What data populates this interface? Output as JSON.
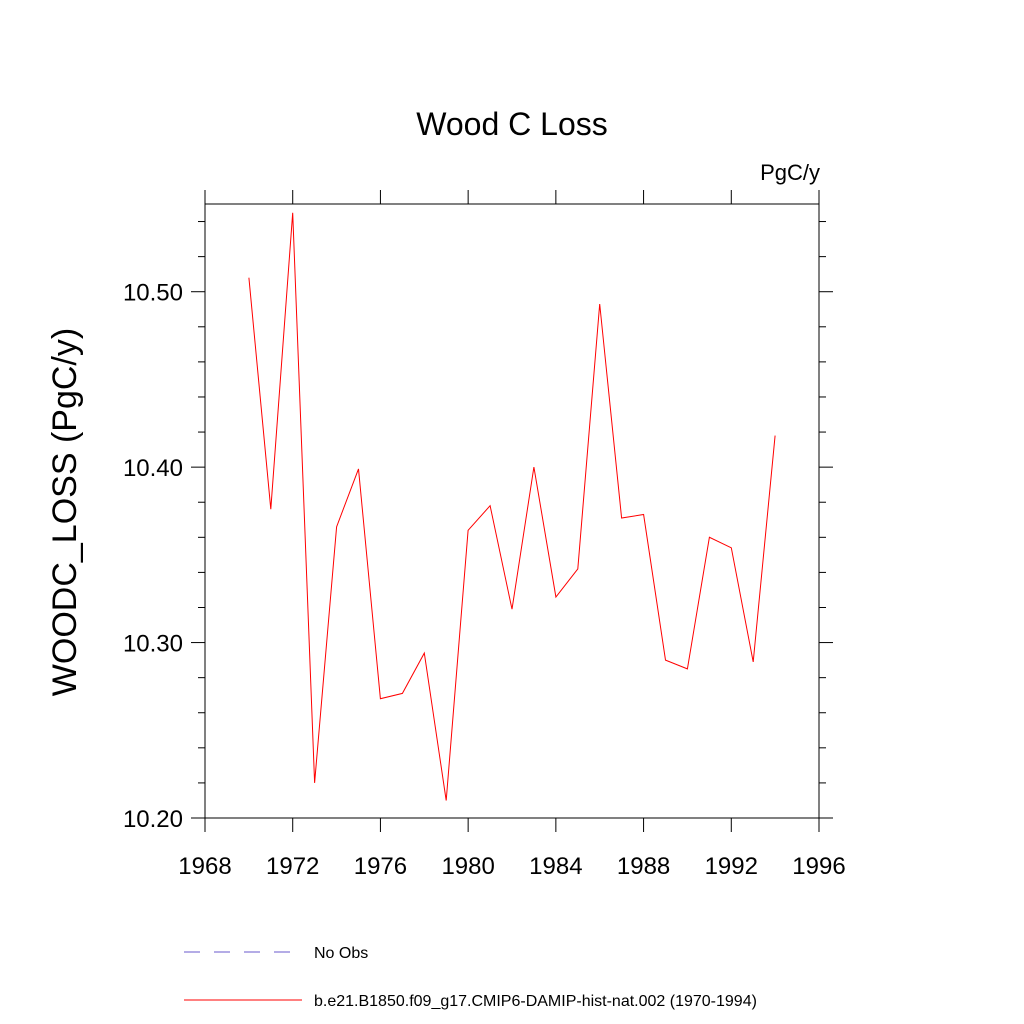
{
  "chart_data": {
    "type": "line",
    "title": "Wood C Loss",
    "units_label": "PgC/y",
    "ylabel": "WOODC_LOSS  (PgC/y)",
    "xlabel": "",
    "xlim": [
      1968,
      1996
    ],
    "ylim": [
      10.2,
      10.55
    ],
    "x_ticks": [
      1968,
      1972,
      1976,
      1980,
      1984,
      1988,
      1992,
      1996
    ],
    "x_tick_labels": [
      "1968",
      "1972",
      "1976",
      "1980",
      "1984",
      "1988",
      "1992",
      "1996"
    ],
    "y_ticks": [
      10.2,
      10.3,
      10.4,
      10.5
    ],
    "y_tick_labels": [
      "10.20",
      "10.30",
      "10.40",
      "10.50"
    ],
    "grid": false,
    "legend_position": "bottom",
    "series": [
      {
        "name": "b.e21.B1850.f09_g17.CMIP6-DAMIP-hist-nat.002 (1970-1994)",
        "color": "#ff0000",
        "style": "solid",
        "x": [
          1970,
          1971,
          1972,
          1973,
          1974,
          1975,
          1976,
          1977,
          1978,
          1979,
          1980,
          1981,
          1982,
          1983,
          1984,
          1985,
          1986,
          1987,
          1988,
          1989,
          1990,
          1991,
          1992,
          1993,
          1994
        ],
        "values": [
          10.508,
          10.376,
          10.545,
          10.22,
          10.366,
          10.399,
          10.268,
          10.271,
          10.294,
          10.21,
          10.364,
          10.378,
          10.319,
          10.4,
          10.326,
          10.342,
          10.493,
          10.371,
          10.373,
          10.29,
          10.285,
          10.36,
          10.354,
          10.289,
          10.418
        ]
      }
    ],
    "legend": [
      {
        "label": "No Obs",
        "color": "#6a5acd",
        "style": "dashed"
      },
      {
        "label": "b.e21.B1850.f09_g17.CMIP6-DAMIP-hist-nat.002 (1970-1994)",
        "color": "#ff0000",
        "style": "solid"
      }
    ]
  }
}
